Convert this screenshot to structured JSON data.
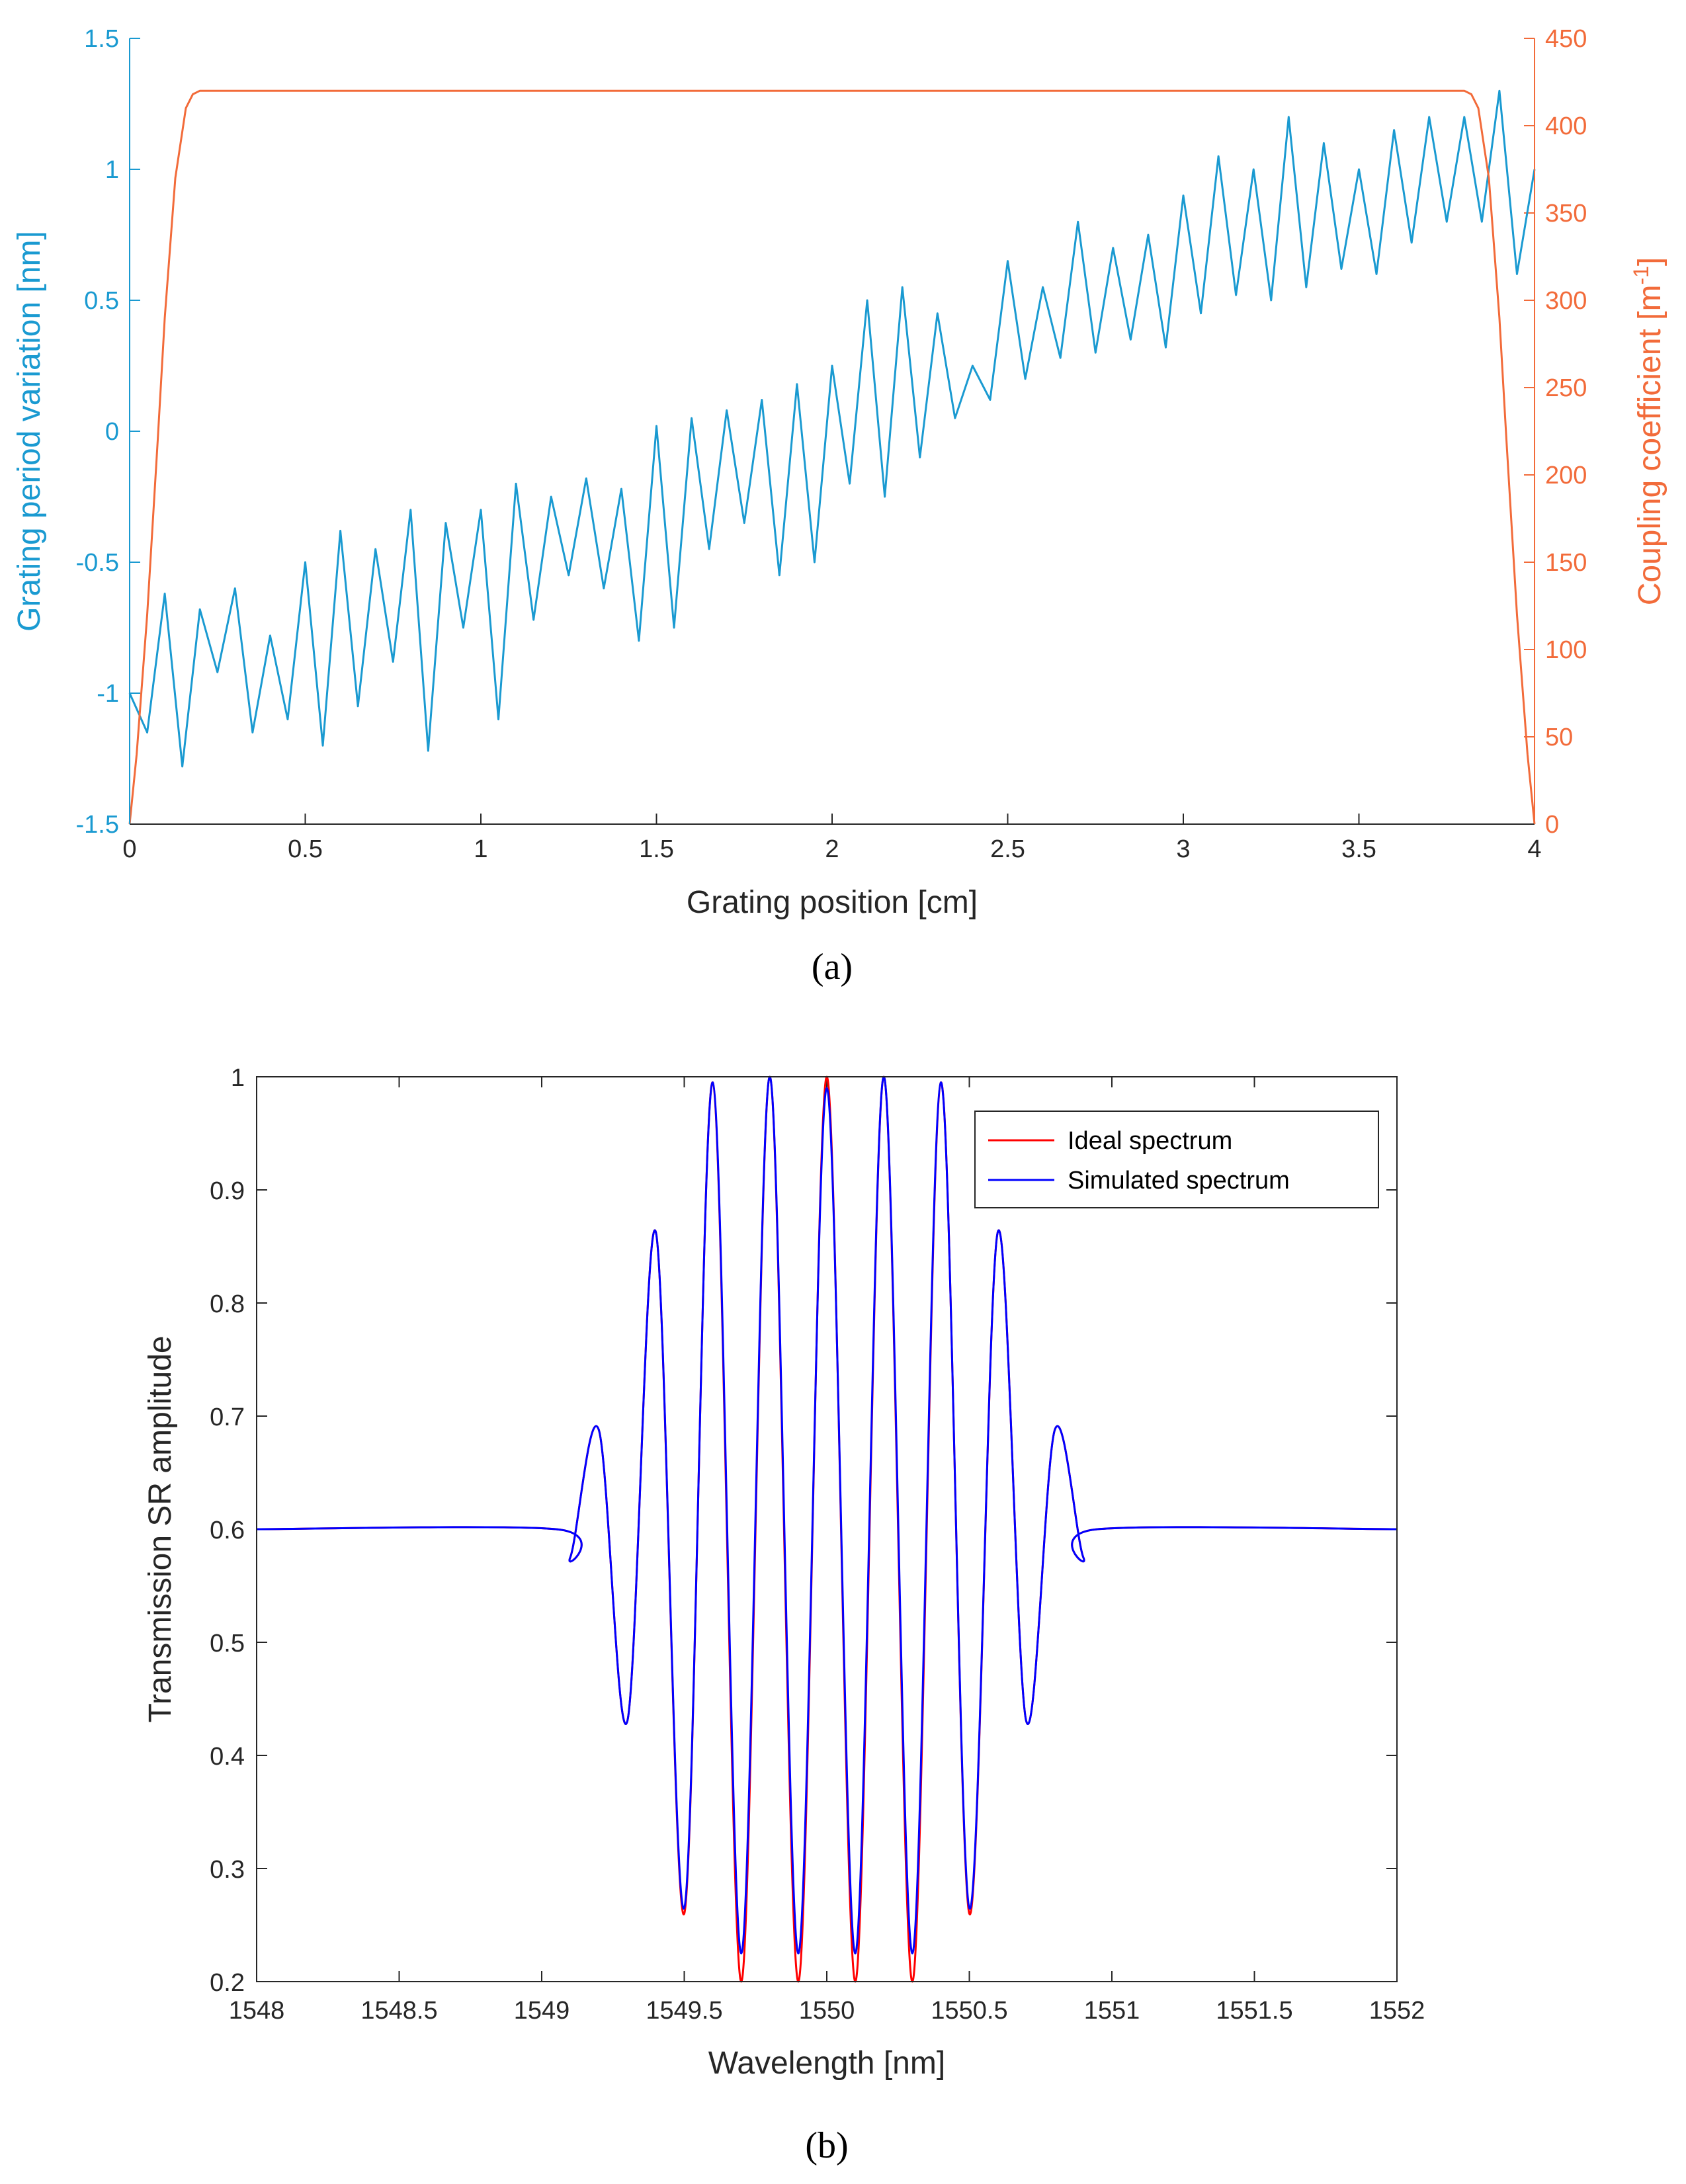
{
  "chart_data": [
    {
      "type": "line",
      "panel_label": "(a)",
      "xlabel": "Grating position [cm]",
      "ylabel_left": "Grating period variation [nm]",
      "ylabel_right_base": "Coupling coefficient [m",
      "ylabel_right_sup": "-1",
      "ylabel_right_end": "]",
      "xlim": [
        0,
        4
      ],
      "ylim_left": [
        -1.5,
        1.5
      ],
      "ylim_right": [
        0,
        450
      ],
      "xticks": [
        "0",
        "0.5",
        "1",
        "1.5",
        "2",
        "2.5",
        "3",
        "3.5",
        "4"
      ],
      "yticks_left": [
        "-1.5",
        "-1",
        "-0.5",
        "0",
        "0.5",
        "1",
        "1.5"
      ],
      "yticks_right": [
        "0",
        "50",
        "100",
        "150",
        "200",
        "250",
        "300",
        "350",
        "400",
        "450"
      ],
      "colors": {
        "left": "#1a9ad1",
        "right": "#f26b3a"
      },
      "series": [
        {
          "name": "Grating period variation",
          "axis": "left",
          "x": [
            0,
            0.05,
            0.1,
            0.15,
            0.2,
            0.25,
            0.3,
            0.35,
            0.4,
            0.45,
            0.5,
            0.55,
            0.6,
            0.65,
            0.7,
            0.75,
            0.8,
            0.85,
            0.9,
            0.95,
            1.0,
            1.05,
            1.1,
            1.15,
            1.2,
            1.25,
            1.3,
            1.35,
            1.4,
            1.45,
            1.5,
            1.55,
            1.6,
            1.65,
            1.7,
            1.75,
            1.8,
            1.85,
            1.9,
            1.95,
            2.0,
            2.05,
            2.1,
            2.15,
            2.2,
            2.25,
            2.3,
            2.35,
            2.4,
            2.45,
            2.5,
            2.55,
            2.6,
            2.65,
            2.7,
            2.75,
            2.8,
            2.85,
            2.9,
            2.95,
            3.0,
            3.05,
            3.1,
            3.15,
            3.2,
            3.25,
            3.3,
            3.35,
            3.4,
            3.45,
            3.5,
            3.55,
            3.6,
            3.65,
            3.7,
            3.75,
            3.8,
            3.85,
            3.9,
            3.95,
            4.0
          ],
          "y": [
            -1.0,
            -1.15,
            -0.62,
            -1.28,
            -0.68,
            -0.92,
            -0.6,
            -1.15,
            -0.78,
            -1.1,
            -0.5,
            -1.2,
            -0.38,
            -1.05,
            -0.45,
            -0.88,
            -0.3,
            -1.22,
            -0.35,
            -0.75,
            -0.3,
            -1.1,
            -0.2,
            -0.72,
            -0.25,
            -0.55,
            -0.18,
            -0.6,
            -0.22,
            -0.8,
            0.02,
            -0.75,
            0.05,
            -0.45,
            0.08,
            -0.35,
            0.12,
            -0.55,
            0.18,
            -0.5,
            0.25,
            -0.2,
            0.5,
            -0.25,
            0.55,
            -0.1,
            0.45,
            0.05,
            0.25,
            0.12,
            0.65,
            0.2,
            0.55,
            0.28,
            0.8,
            0.3,
            0.7,
            0.35,
            0.75,
            0.32,
            0.9,
            0.45,
            1.05,
            0.52,
            1.0,
            0.5,
            1.2,
            0.55,
            1.1,
            0.62,
            1.0,
            0.6,
            1.15,
            0.72,
            1.2,
            0.8,
            1.2,
            0.8,
            1.3,
            0.6,
            1.0
          ]
        },
        {
          "name": "Coupling coefficient",
          "axis": "right",
          "x": [
            0,
            0.02,
            0.05,
            0.08,
            0.1,
            0.13,
            0.16,
            0.18,
            0.2,
            3.8,
            3.82,
            3.84,
            3.87,
            3.9,
            3.92,
            3.95,
            3.98,
            4.0
          ],
          "y": [
            0,
            40,
            120,
            220,
            290,
            370,
            410,
            418,
            420,
            420,
            418,
            410,
            370,
            290,
            220,
            120,
            40,
            0
          ]
        }
      ]
    },
    {
      "type": "line",
      "panel_label": "(b)",
      "xlabel": "Wavelength [nm]",
      "ylabel": "Transmission SR amplitude",
      "xlim": [
        1548,
        1552
      ],
      "ylim": [
        0.2,
        1.0
      ],
      "xticks": [
        "1548",
        "1548.5",
        "1549",
        "1549.5",
        "1550",
        "1550.5",
        "1551",
        "1551.5",
        "1552"
      ],
      "yticks": [
        "0.2",
        "0.3",
        "0.4",
        "0.5",
        "0.6",
        "0.7",
        "0.8",
        "0.9",
        "1"
      ],
      "legend": [
        "Ideal spectrum",
        "Simulated spectrum"
      ],
      "legend_position": "top-right",
      "colors": {
        "ideal": "#ff0000",
        "simulated": "#0000ff"
      },
      "series": [
        {
          "name": "Ideal spectrum",
          "x": [
            1548,
            1549.05,
            1549.1,
            1549.2,
            1549.3,
            1549.4,
            1549.5,
            1549.6,
            1549.7,
            1549.8,
            1549.9,
            1550.0,
            1550.1,
            1550.2,
            1550.3,
            1550.4,
            1550.5,
            1550.6,
            1550.7,
            1550.8,
            1550.9,
            1550.95,
            1552
          ],
          "y": [
            0.6,
            0.6,
            0.575,
            0.688,
            0.43,
            0.863,
            0.26,
            0.995,
            0.2,
            1.0,
            0.2,
            1.0,
            0.2,
            1.0,
            0.2,
            0.995,
            0.26,
            0.863,
            0.43,
            0.688,
            0.575,
            0.6,
            0.6
          ]
        },
        {
          "name": "Simulated spectrum",
          "x": [
            1548,
            1549.05,
            1549.1,
            1549.2,
            1549.3,
            1549.4,
            1549.5,
            1549.6,
            1549.7,
            1549.8,
            1549.9,
            1550.0,
            1550.1,
            1550.2,
            1550.3,
            1550.4,
            1550.5,
            1550.6,
            1550.7,
            1550.8,
            1550.9,
            1550.95,
            1552
          ],
          "y": [
            0.6,
            0.6,
            0.575,
            0.688,
            0.43,
            0.863,
            0.265,
            0.995,
            0.225,
            1.0,
            0.225,
            0.99,
            0.225,
            1.0,
            0.225,
            0.995,
            0.265,
            0.863,
            0.43,
            0.688,
            0.575,
            0.6,
            0.6
          ]
        }
      ]
    }
  ]
}
